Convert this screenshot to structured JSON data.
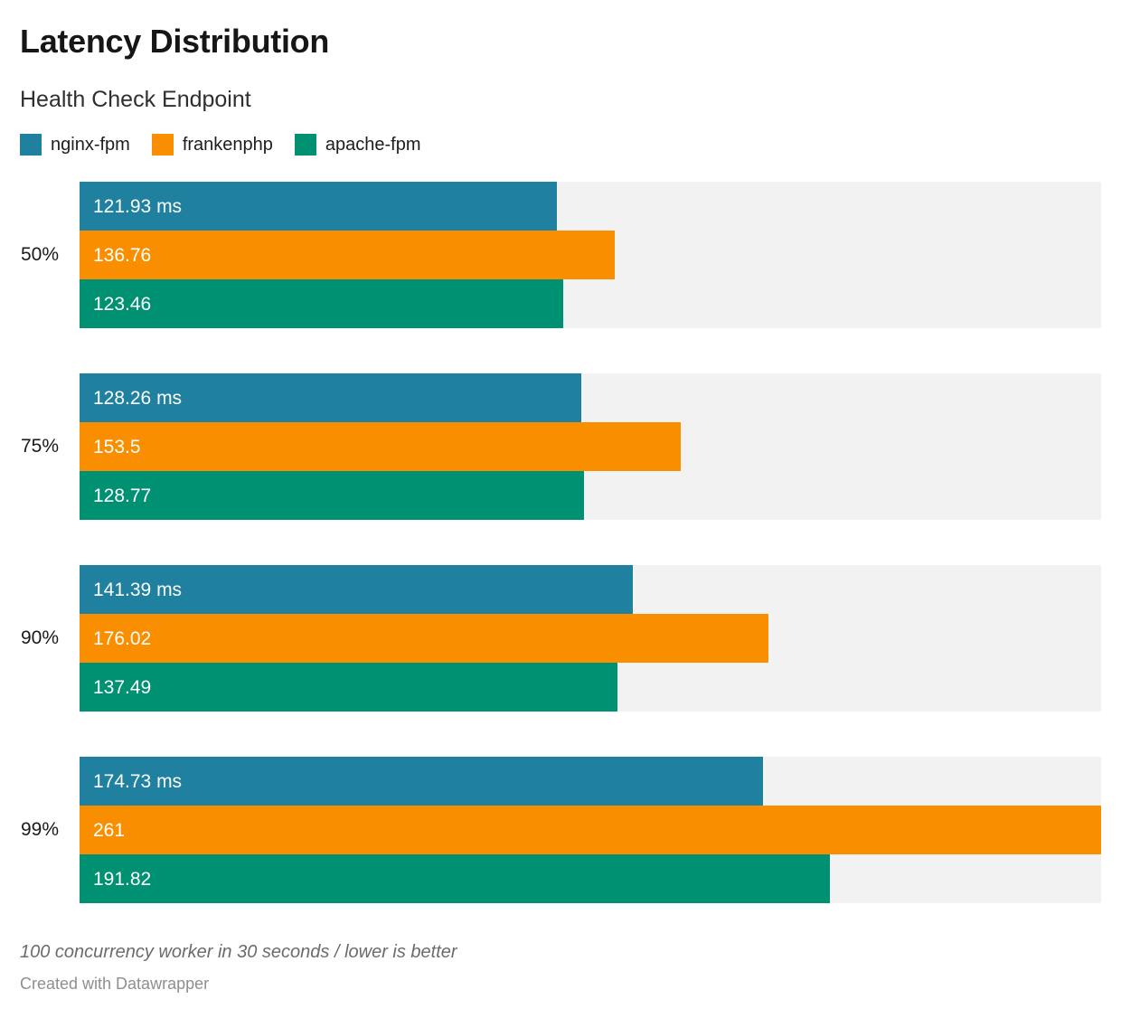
{
  "header": {
    "title": "Latency Distribution",
    "subtitle": "Health Check Endpoint"
  },
  "legend": [
    {
      "label": "nginx-fpm",
      "color": "#1f80a0"
    },
    {
      "label": "frankenphp",
      "color": "#f98f00"
    },
    {
      "label": "apache-fpm",
      "color": "#009172"
    }
  ],
  "chart_data": {
    "type": "bar",
    "orientation": "horizontal",
    "title": "Latency Distribution",
    "subtitle": "Health Check Endpoint",
    "categories": [
      "50%",
      "75%",
      "90%",
      "99%"
    ],
    "series": [
      {
        "name": "nginx-fpm",
        "color": "#1f80a0",
        "values": [
          121.93,
          128.26,
          141.39,
          174.73
        ],
        "labels": [
          "121.93 ms",
          "128.26 ms",
          "141.39 ms",
          "174.73 ms"
        ]
      },
      {
        "name": "frankenphp",
        "color": "#f98f00",
        "values": [
          136.76,
          153.5,
          176.02,
          261
        ],
        "labels": [
          "136.76",
          "153.5",
          "176.02",
          "261"
        ]
      },
      {
        "name": "apache-fpm",
        "color": "#009172",
        "values": [
          123.46,
          128.77,
          137.49,
          191.82
        ],
        "labels": [
          "123.46",
          "128.77",
          "137.49",
          "191.82"
        ]
      }
    ],
    "unit": "ms",
    "xlim": [
      0,
      261
    ],
    "grid": false,
    "legend_position": "top",
    "track_color": "#f2f2f2",
    "value_label_color": "#ffffff"
  },
  "footer": {
    "note": "100 concurrency worker in 30 seconds / lower is better",
    "credit": "Created with Datawrapper"
  }
}
